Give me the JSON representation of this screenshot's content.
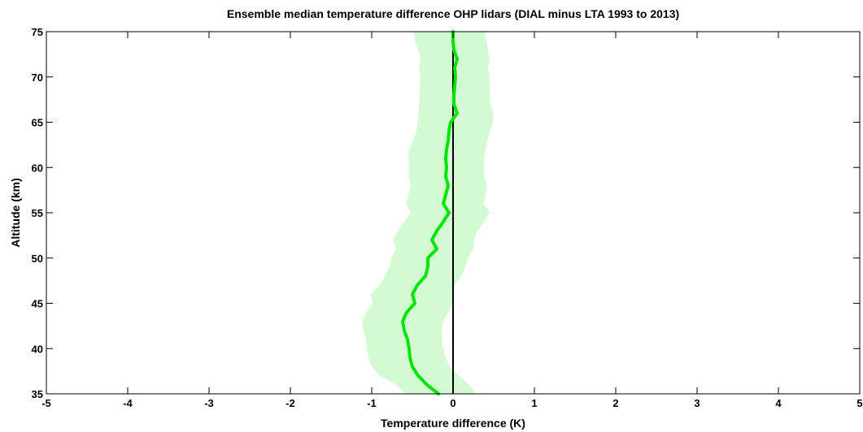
{
  "chart_data": {
    "type": "line",
    "title": "Ensemble median temperature difference OHP lidars (DIAL minus LTA 1993 to 2013)",
    "xlabel": "Temperature difference (K)",
    "ylabel": "Altitude (km)",
    "xlim": [
      -5,
      5
    ],
    "ylim": [
      35,
      75
    ],
    "xticks": [
      "-5",
      "-4",
      "-3",
      "-2",
      "-1",
      "0",
      "1",
      "2",
      "3",
      "4",
      "5"
    ],
    "yticks": [
      "35",
      "40",
      "45",
      "50",
      "55",
      "60",
      "65",
      "70",
      "75"
    ],
    "grid": false,
    "legend": "none",
    "colors": {
      "median_line": "#00e600",
      "spread_fill": "#d4fad4",
      "zero_line": "#000000"
    },
    "series": [
      {
        "y": [
          35,
          36,
          37,
          38,
          39,
          40,
          41,
          42,
          43,
          44,
          45,
          46,
          47,
          48,
          49,
          50,
          51,
          52,
          53,
          54,
          55,
          56,
          57,
          58,
          59,
          60,
          61,
          62,
          63,
          64,
          65,
          66,
          67,
          68,
          69,
          70,
          71,
          72,
          73,
          74,
          75
        ],
        "median": [
          -0.18,
          -0.32,
          -0.43,
          -0.5,
          -0.53,
          -0.54,
          -0.56,
          -0.6,
          -0.62,
          -0.57,
          -0.47,
          -0.5,
          -0.44,
          -0.34,
          -0.31,
          -0.31,
          -0.2,
          -0.26,
          -0.2,
          -0.12,
          -0.05,
          -0.12,
          -0.09,
          -0.06,
          -0.09,
          -0.08,
          -0.09,
          -0.08,
          -0.06,
          -0.05,
          -0.03,
          0.05,
          0.01,
          0.01,
          0.02,
          0.03,
          0.02,
          0.05,
          0.01,
          0.0,
          0.0
        ],
        "lower": [
          -0.58,
          -0.7,
          -0.9,
          -1.0,
          -1.04,
          -1.06,
          -1.07,
          -1.1,
          -1.12,
          -1.07,
          -0.99,
          -1.01,
          -0.9,
          -0.84,
          -0.78,
          -0.76,
          -0.7,
          -0.74,
          -0.68,
          -0.6,
          -0.52,
          -0.58,
          -0.55,
          -0.52,
          -0.55,
          -0.54,
          -0.55,
          -0.54,
          -0.49,
          -0.45,
          -0.44,
          -0.42,
          -0.42,
          -0.41,
          -0.41,
          -0.4,
          -0.42,
          -0.4,
          -0.43,
          -0.47,
          -0.49
        ]
      }
    ],
    "spread_upper": [
      0.28,
      0.2,
      0.07,
      -0.04,
      -0.09,
      -0.12,
      -0.14,
      -0.14,
      -0.12,
      -0.06,
      0.0,
      0.0,
      0.02,
      0.1,
      0.15,
      0.18,
      0.25,
      0.26,
      0.3,
      0.38,
      0.45,
      0.38,
      0.4,
      0.42,
      0.38,
      0.38,
      0.38,
      0.4,
      0.42,
      0.46,
      0.49,
      0.5,
      0.46,
      0.45,
      0.45,
      0.45,
      0.43,
      0.45,
      0.43,
      0.41,
      0.39
    ]
  }
}
